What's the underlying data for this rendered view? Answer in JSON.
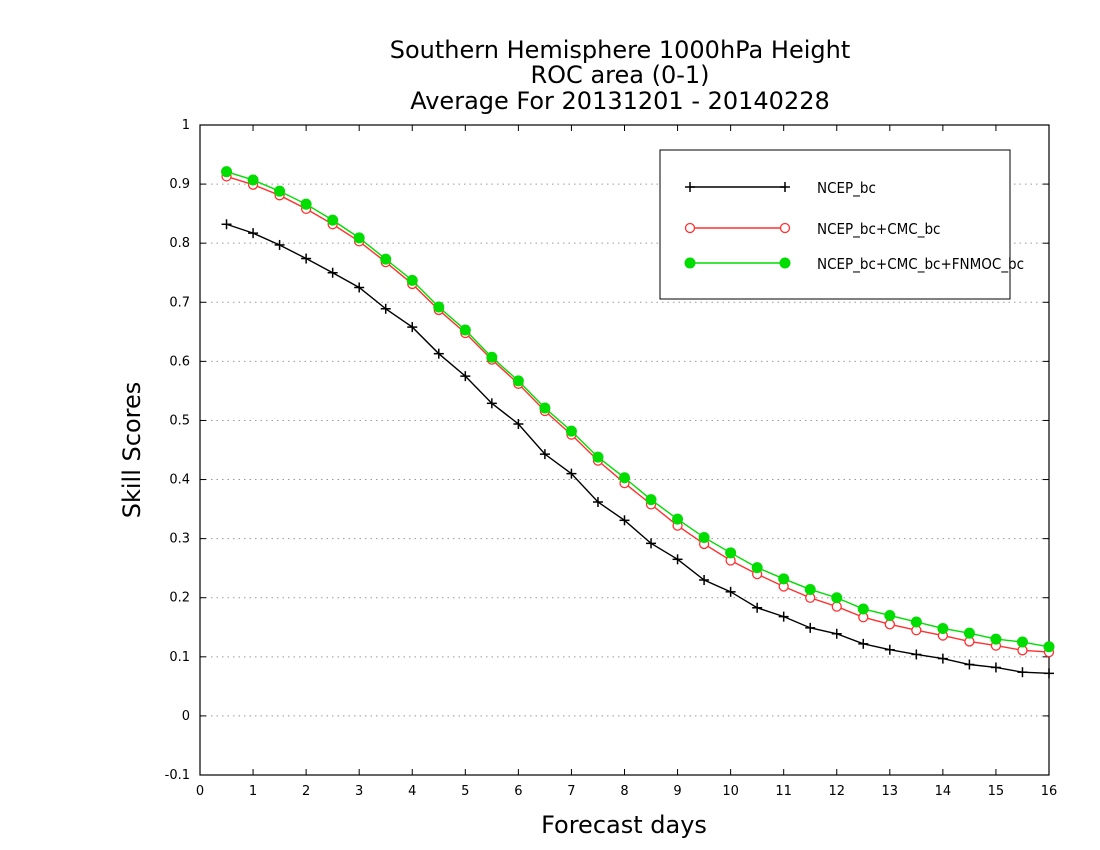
{
  "chart_data": {
    "type": "line",
    "title_lines": [
      "Southern Hemisphere 1000hPa Height",
      "ROC area (0-1)",
      "Average For 20131201 - 20140228"
    ],
    "xlabel": "Forecast days",
    "ylabel": "Skill Scores",
    "xlim": [
      0,
      16
    ],
    "ylim": [
      -0.1,
      1
    ],
    "x_ticks": [
      "0",
      "1",
      "2",
      "3",
      "4",
      "5",
      "6",
      "7",
      "8",
      "9",
      "10",
      "11",
      "12",
      "13",
      "14",
      "15",
      "16"
    ],
    "y_ticks": [
      "-0.1",
      "0",
      "0.1",
      "0.2",
      "0.3",
      "0.4",
      "0.5",
      "0.6",
      "0.7",
      "0.8",
      "0.9",
      "1"
    ],
    "grid": "horizontal dotted",
    "legend_position": "top-right",
    "x": [
      0.5,
      1,
      1.5,
      2,
      2.5,
      3,
      3.5,
      4,
      4.5,
      5,
      5.5,
      6,
      6.5,
      7,
      7.5,
      8,
      8.5,
      9,
      9.5,
      10,
      10.5,
      11,
      11.5,
      12,
      12.5,
      13,
      13.5,
      14,
      14.5,
      15,
      15.5,
      16
    ],
    "series": [
      {
        "name": "NCEP_bc",
        "color": "#000000",
        "marker": "plus",
        "values": [
          0.832,
          0.817,
          0.797,
          0.774,
          0.75,
          0.725,
          0.689,
          0.658,
          0.613,
          0.575,
          0.529,
          0.494,
          0.443,
          0.41,
          0.362,
          0.331,
          0.292,
          0.265,
          0.23,
          0.21,
          0.183,
          0.168,
          0.149,
          0.139,
          0.122,
          0.112,
          0.104,
          0.097,
          0.087,
          0.082,
          0.074,
          0.072
        ]
      },
      {
        "name": "NCEP_bc+CMC_bc",
        "color": "#ff3030",
        "marker": "open-circle",
        "values": [
          0.913,
          0.899,
          0.881,
          0.858,
          0.832,
          0.803,
          0.768,
          0.731,
          0.687,
          0.648,
          0.603,
          0.562,
          0.516,
          0.476,
          0.432,
          0.394,
          0.358,
          0.322,
          0.291,
          0.263,
          0.24,
          0.219,
          0.2,
          0.185,
          0.167,
          0.155,
          0.145,
          0.136,
          0.126,
          0.119,
          0.111,
          0.108
        ]
      },
      {
        "name": "NCEP_bc+CMC_bc+FNMOC_bc",
        "color": "#00dd00",
        "marker": "filled-circle",
        "values": [
          0.921,
          0.907,
          0.888,
          0.866,
          0.839,
          0.809,
          0.773,
          0.737,
          0.692,
          0.653,
          0.607,
          0.567,
          0.521,
          0.482,
          0.438,
          0.403,
          0.366,
          0.333,
          0.302,
          0.276,
          0.251,
          0.232,
          0.214,
          0.2,
          0.181,
          0.17,
          0.159,
          0.148,
          0.14,
          0.13,
          0.125,
          0.117
        ]
      }
    ]
  }
}
